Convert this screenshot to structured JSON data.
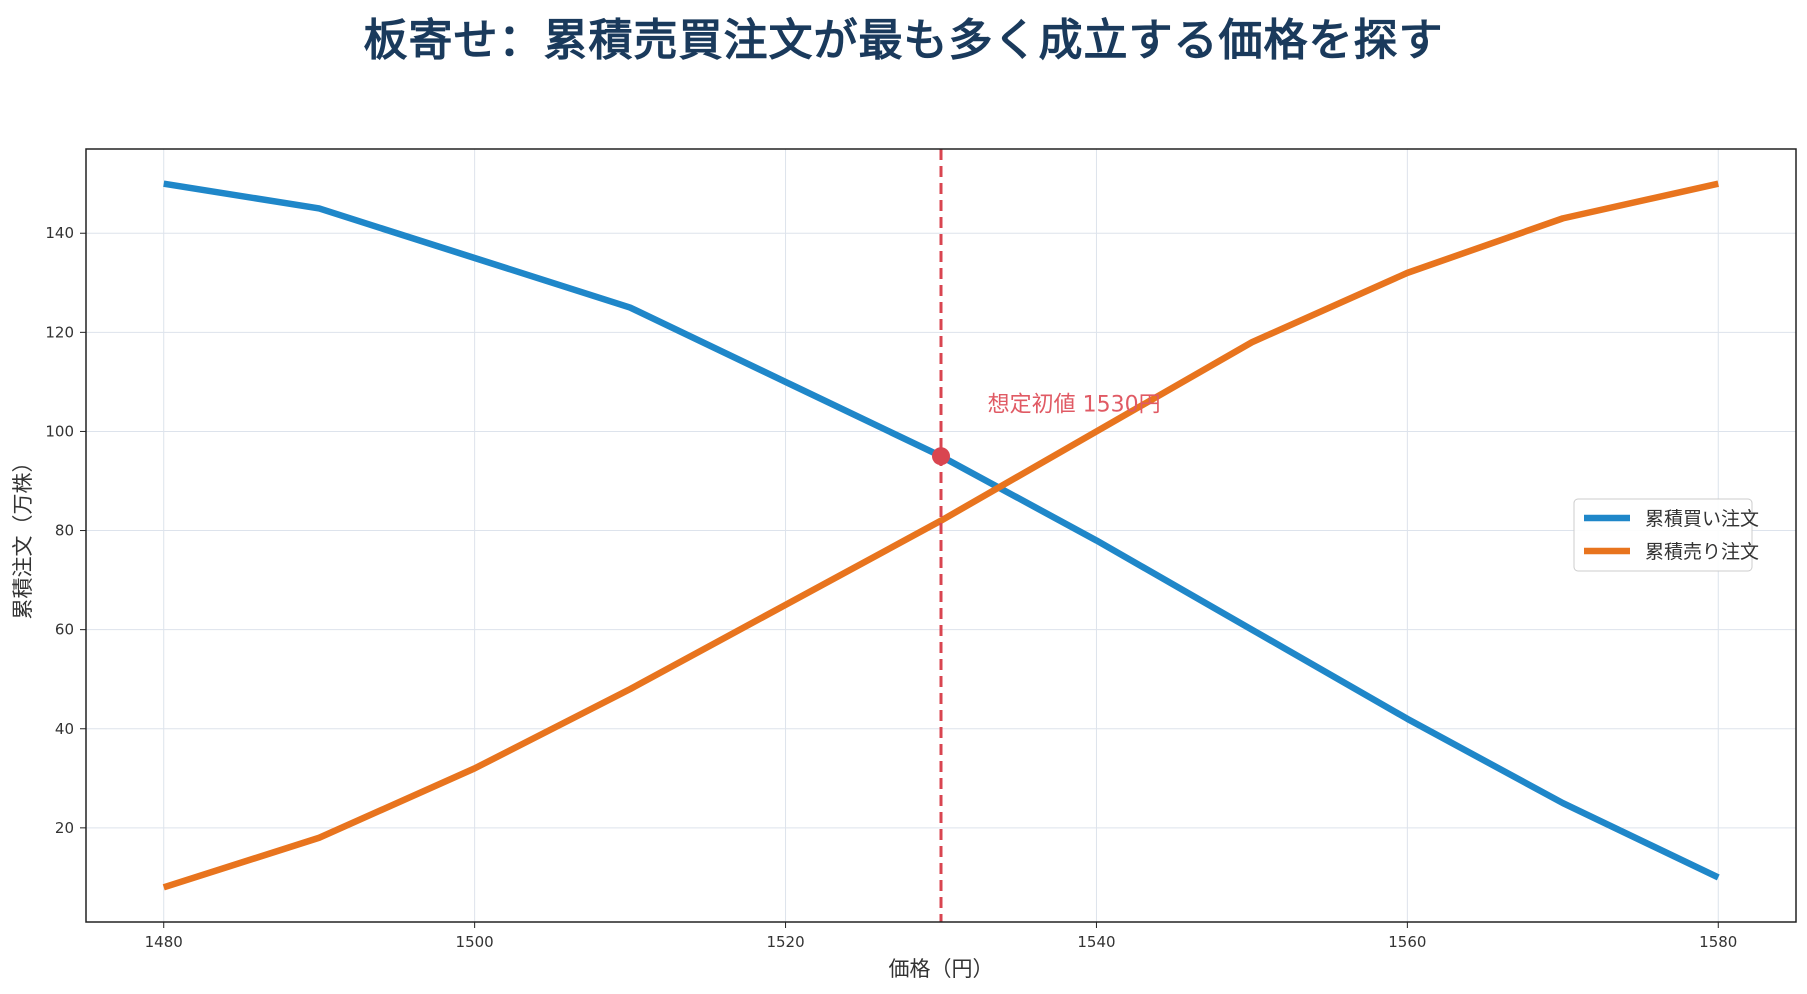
{
  "chart_data": {
    "type": "line",
    "title": "板寄せ：累積売買注文が最も多く成立する価格を探す",
    "xlabel": "価格（円）",
    "ylabel": "累積注文（万株）",
    "x": [
      1480,
      1490,
      1500,
      1510,
      1520,
      1530,
      1540,
      1550,
      1560,
      1570,
      1580
    ],
    "xlim": [
      1475,
      1585
    ],
    "ylim": [
      1,
      157
    ],
    "xticks": [
      1480,
      1500,
      1520,
      1540,
      1560,
      1580
    ],
    "yticks": [
      20,
      40,
      60,
      80,
      100,
      120,
      140
    ],
    "grid": true,
    "legend_position": "center-right",
    "series": [
      {
        "name": "累積買い注文",
        "color": "#1f87c9",
        "values": [
          150,
          145,
          135,
          125,
          110,
          95,
          78,
          60,
          42,
          25,
          10
        ]
      },
      {
        "name": "累積売り注文",
        "color": "#e8741e",
        "values": [
          8,
          18,
          32,
          48,
          65,
          82,
          100,
          118,
          132,
          143,
          150
        ]
      }
    ],
    "reference_line": {
      "x": 1530,
      "color": "#d94550"
    },
    "marker": {
      "x": 1530,
      "y": 95,
      "color": "#d94550"
    },
    "annotation": {
      "text": "想定初値 1530円",
      "x": 1533,
      "y": 104,
      "color": "#e05a64"
    }
  }
}
